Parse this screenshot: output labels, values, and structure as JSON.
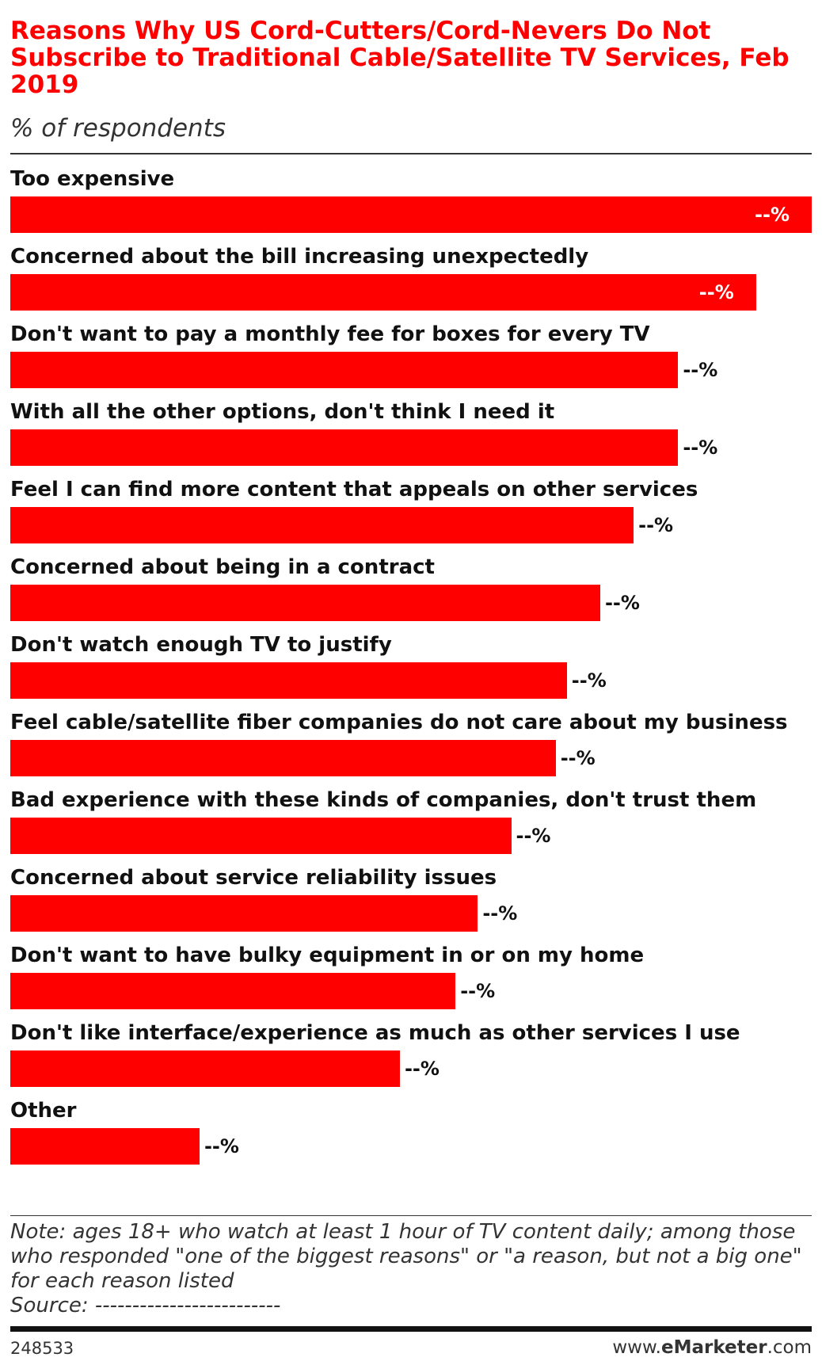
{
  "chart_data": {
    "type": "bar",
    "title": "Reasons Why US Cord-Cutters/Cord-Nevers Do Not Subscribe to Traditional Cable/Satellite TV Services, Feb 2019",
    "subtitle": "% of respondents",
    "categories": [
      "Too expensive",
      "Concerned about the bill increasing unexpectedly",
      "Don't want to pay a monthly fee for boxes for every TV",
      "With all the other options, don't think I need it",
      "Feel I can find more content that appeals on other services",
      "Concerned about being in a contract",
      "Don't watch enough TV to justify",
      "Feel cable/satellite fiber companies do not care about my business",
      "Bad experience with these kinds of companies, don't trust them",
      "Concerned about service reliability issues",
      "Don't want to have bulky equipment in or on my home",
      "Don't like interface/experience as much as other services I use",
      "Other"
    ],
    "values": [
      72,
      67,
      60,
      60,
      56,
      53,
      50,
      49,
      45,
      42,
      40,
      35,
      17
    ],
    "value_labels": [
      "--%",
      "--%",
      "--%",
      "--%",
      "--%",
      "--%",
      "--%",
      "--%",
      "--%",
      "--%",
      "--%",
      "--%",
      "--%"
    ],
    "color": "#ff0000",
    "note": "Note: ages 18+ who watch at least 1 hour of TV content daily; among those who responded \"one of the biggest reasons\" or \"a reason, but not a big one\" for each reason listed",
    "source": "Source: -------------------------",
    "chart_id": "248533",
    "brand": [
      "www.",
      "eMarketer",
      ".com"
    ]
  }
}
